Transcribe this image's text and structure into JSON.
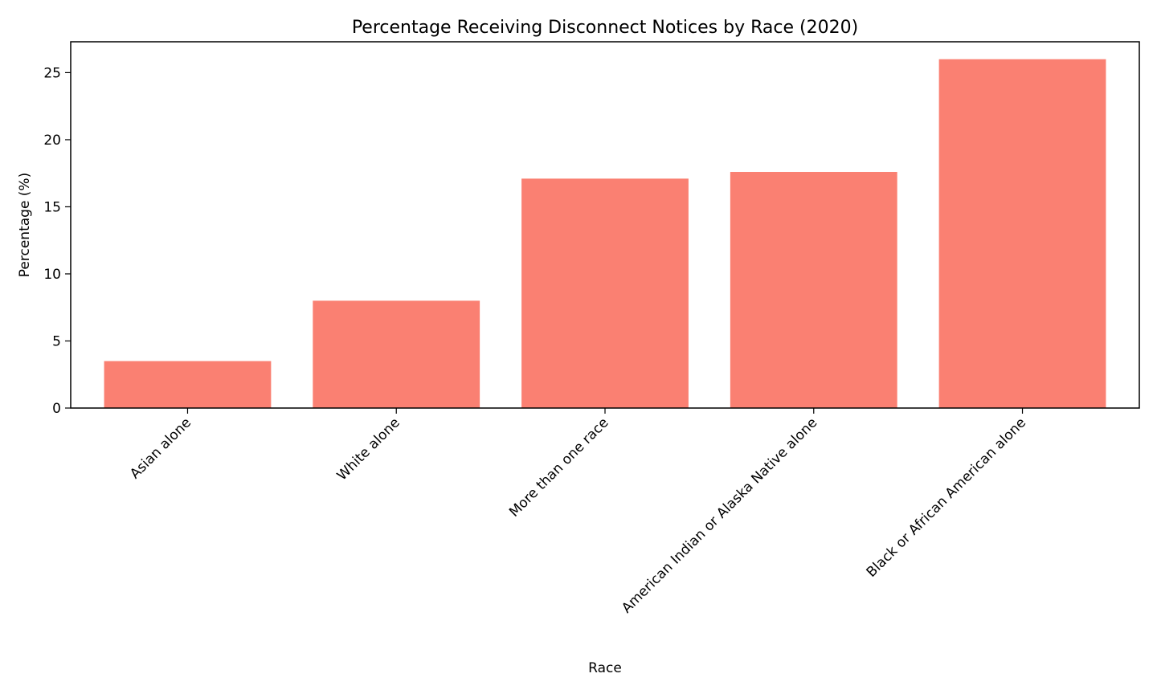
{
  "chart_data": {
    "type": "bar",
    "title": "Percentage Receiving Disconnect Notices by Race (2020)",
    "xlabel": "Race",
    "ylabel": "Percentage (%)",
    "categories": [
      "Asian alone",
      "White alone",
      "More than one race",
      "American Indian or Alaska Native alone",
      "Black or African American alone"
    ],
    "values": [
      3.5,
      8.0,
      17.1,
      17.6,
      26.0
    ],
    "ylim": [
      0,
      27.3
    ],
    "yticks": [
      0,
      5,
      10,
      15,
      20,
      25
    ],
    "bar_color": "#fa8072",
    "grid": false,
    "legend": "none"
  }
}
